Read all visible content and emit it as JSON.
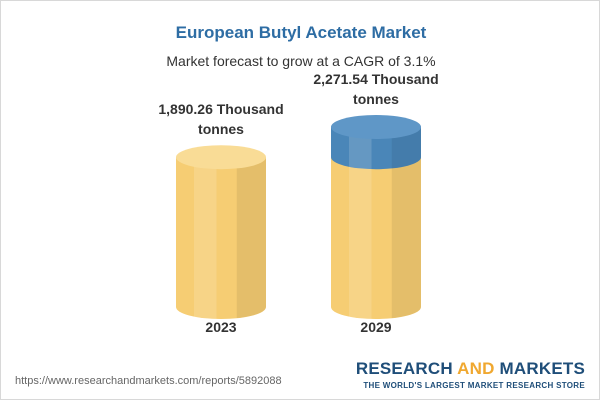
{
  "chart_data": {
    "type": "cylinder",
    "title": "European Butyl Acetate Market",
    "subtitle": "Market forecast to grow at a CAGR of 3.1%",
    "categories": [
      "2023",
      "2029"
    ],
    "values": [
      1890.26,
      2271.54
    ],
    "value_labels": [
      "1,890.26 Thousand tonnes",
      "2,271.54 Thousand tonnes"
    ],
    "color": "#f6cd73",
    "growth_color": "#4a86b8"
  },
  "footer": {
    "url": "https://www.researchandmarkets.com/reports/5892088",
    "logo": [
      "RESEARCH",
      "AND",
      "MARKETS"
    ],
    "tagline": "THE WORLD'S LARGEST MARKET RESEARCH STORE"
  }
}
